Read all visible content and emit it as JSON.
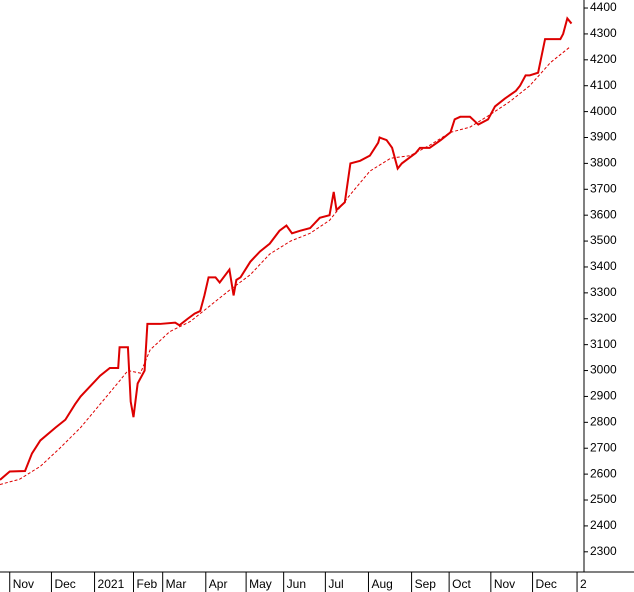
{
  "chart_data": {
    "type": "line",
    "xlim": [
      0,
      420
    ],
    "ylim": [
      2222,
      4431
    ],
    "yticks": [
      2300,
      2400,
      2500,
      2600,
      2700,
      2800,
      2900,
      3000,
      3100,
      3200,
      3300,
      3400,
      3500,
      3600,
      3700,
      3800,
      3900,
      4000,
      4100,
      4200,
      4300,
      4400
    ],
    "xticks": [
      {
        "value": 7,
        "label": "Nov"
      },
      {
        "value": 37,
        "label": "Dec"
      },
      {
        "value": 68,
        "label": "2021"
      },
      {
        "value": 96,
        "label": "Feb"
      },
      {
        "value": 117,
        "label": "Mar"
      },
      {
        "value": 148,
        "label": "Apr"
      },
      {
        "value": 177,
        "label": "May"
      },
      {
        "value": 204,
        "label": "Jun"
      },
      {
        "value": 234,
        "label": "Jul"
      },
      {
        "value": 265,
        "label": "Aug"
      },
      {
        "value": 296,
        "label": "Sep"
      },
      {
        "value": 323,
        "label": "Oct"
      },
      {
        "value": 353,
        "label": "Nov"
      },
      {
        "value": 383,
        "label": "Dec"
      },
      {
        "value": 415,
        "label": "2"
      }
    ],
    "series": [
      {
        "color": "#dd0000",
        "dash": false,
        "x": [
          0,
          7,
          18,
          23,
          29,
          40,
          47,
          54,
          58,
          65,
          72,
          79,
          85,
          86,
          92,
          94,
          96,
          99,
          104,
          106,
          115,
          126,
          129,
          135,
          140,
          144,
          147,
          150,
          155,
          158,
          165,
          168,
          170,
          173,
          180,
          187,
          194,
          201,
          206,
          210,
          216,
          223,
          230,
          237,
          240,
          242,
          248,
          252,
          259,
          266,
          272,
          273,
          278,
          282,
          286,
          289,
          294,
          299,
          302,
          309,
          317,
          324,
          327,
          331,
          338,
          344,
          351,
          356,
          363,
          371,
          374,
          378,
          381,
          387,
          392,
          399,
          403,
          405,
          408,
          411
        ],
        "values": [
          2578,
          2610,
          2612,
          2680,
          2730,
          2780,
          2810,
          2870,
          2900,
          2940,
          2980,
          3010,
          3010,
          3090,
          3090,
          2880,
          2820,
          2950,
          3000,
          3180,
          3180,
          3185,
          3175,
          3200,
          3220,
          3230,
          3290,
          3360,
          3360,
          3340,
          3390,
          3290,
          3350,
          3360,
          3420,
          3460,
          3490,
          3540,
          3560,
          3530,
          3540,
          3550,
          3590,
          3600,
          3690,
          3620,
          3650,
          3800,
          3810,
          3830,
          3880,
          3900,
          3890,
          3860,
          3780,
          3800,
          3820,
          3840,
          3860,
          3860,
          3890,
          3920,
          3970,
          3980,
          3980,
          3950,
          3970,
          4020,
          4050,
          4080,
          4100,
          4140,
          4140,
          4150,
          4280,
          4280,
          4280,
          4300,
          4360,
          4340
        ]
      },
      {
        "color": "#dd0000",
        "dash": true,
        "x": [
          0,
          14,
          29,
          43,
          58,
          72,
          86,
          92,
          101,
          108,
          122,
          137,
          151,
          165,
          180,
          194,
          209,
          223,
          237,
          252,
          266,
          281,
          295,
          309,
          324,
          338,
          353,
          367,
          381,
          396,
          410
        ],
        "values": [
          2560,
          2580,
          2630,
          2700,
          2780,
          2870,
          2960,
          3000,
          2990,
          3080,
          3150,
          3190,
          3250,
          3310,
          3370,
          3450,
          3500,
          3530,
          3580,
          3680,
          3770,
          3820,
          3830,
          3870,
          3920,
          3940,
          3990,
          4040,
          4100,
          4190,
          4250
        ]
      }
    ]
  }
}
